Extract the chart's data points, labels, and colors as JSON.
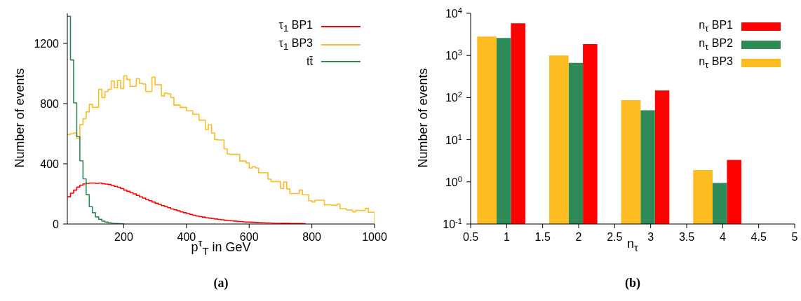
{
  "chart_data": [
    {
      "type": "step",
      "xlabel": "p$^{τ}$$_{T}$ in GeV",
      "ylabel": "Number of events",
      "annotations": [
        "(a)"
      ],
      "xlim": [
        20,
        1000
      ],
      "xticks": [
        200,
        400,
        600,
        800,
        1000
      ],
      "ylim": [
        0,
        1400
      ],
      "yticks": [
        0,
        400,
        800,
        1200
      ],
      "legend": "top right",
      "series": [
        {
          "name": "τ$_{1}$ BP1",
          "color": "#ff0000",
          "x": [
            20,
            30,
            40,
            50,
            60,
            70,
            80,
            90,
            100,
            110,
            120,
            130,
            140,
            150,
            160,
            170,
            180,
            190,
            200,
            210,
            220,
            230,
            240,
            250,
            260,
            270,
            280,
            290,
            300,
            310,
            320,
            330,
            340,
            350,
            360,
            370,
            380,
            390,
            400,
            410,
            420,
            430,
            440,
            450,
            460,
            470,
            480,
            490,
            500,
            510,
            520,
            530,
            540,
            550,
            560,
            570,
            580,
            590,
            600,
            610,
            620,
            630,
            640,
            650,
            660,
            670,
            680,
            690,
            700,
            710,
            720,
            730,
            740,
            750,
            760,
            770,
            780
          ],
          "values": [
            181,
            205,
            225,
            245,
            258,
            266,
            270,
            272,
            272,
            270,
            272,
            268,
            265,
            262,
            256,
            250,
            244,
            235,
            225,
            217,
            208,
            200,
            190,
            180,
            172,
            163,
            155,
            146,
            138,
            130,
            122,
            115,
            108,
            100,
            94,
            88,
            80,
            75,
            70,
            64,
            58,
            53,
            49,
            46,
            42,
            39,
            36,
            33,
            30,
            28,
            25,
            23,
            21,
            19,
            17,
            16,
            14,
            13,
            12,
            11,
            10,
            9,
            8,
            7,
            7,
            6,
            5,
            5,
            4,
            4,
            4,
            3,
            3,
            3,
            3,
            2,
            2
          ]
        },
        {
          "name": "τ$_{1}$ BP3",
          "color": "#fcbc22",
          "x": [
            20,
            30,
            40,
            50,
            60,
            70,
            80,
            90,
            100,
            110,
            120,
            130,
            140,
            150,
            160,
            170,
            180,
            190,
            200,
            210,
            220,
            230,
            240,
            250,
            260,
            270,
            280,
            290,
            300,
            310,
            320,
            330,
            340,
            350,
            360,
            370,
            380,
            390,
            400,
            410,
            420,
            430,
            440,
            450,
            460,
            470,
            480,
            490,
            500,
            510,
            520,
            530,
            540,
            550,
            560,
            570,
            580,
            590,
            600,
            610,
            620,
            630,
            640,
            650,
            660,
            670,
            680,
            690,
            700,
            710,
            720,
            730,
            740,
            750,
            760,
            770,
            780,
            790,
            800,
            810,
            820,
            830,
            840,
            850,
            860,
            870,
            880,
            890,
            900,
            910,
            920,
            930,
            940,
            950,
            960,
            970,
            980,
            990,
            1000
          ],
          "values": [
            595,
            600,
            605,
            570,
            660,
            700,
            745,
            795,
            775,
            775,
            895,
            840,
            880,
            895,
            950,
            905,
            955,
            900,
            985,
            960,
            915,
            915,
            965,
            935,
            930,
            880,
            880,
            975,
            925,
            925,
            850,
            870,
            865,
            840,
            790,
            790,
            775,
            775,
            752,
            752,
            729,
            729,
            690,
            690,
            628,
            659,
            605,
            561,
            558,
            558,
            500,
            465,
            462,
            462,
            462,
            419,
            419,
            406,
            372,
            380,
            372,
            341,
            341,
            341,
            298,
            282,
            282,
            282,
            236,
            279,
            233,
            202,
            202,
            202,
            225,
            194,
            194,
            155,
            147,
            158,
            158,
            158,
            127,
            127,
            127,
            124,
            132,
            101,
            101,
            93,
            93,
            81,
            90,
            90,
            90,
            104,
            78,
            78,
            0
          ]
        },
        {
          "name": "tt̄",
          "color": "#2e8b57",
          "x": [
            20,
            30,
            40,
            50,
            60,
            70,
            80,
            90,
            100,
            110,
            120,
            130,
            140,
            150,
            160,
            170,
            180,
            190,
            200
          ],
          "values": [
            1380,
            1090,
            805,
            580,
            420,
            300,
            195,
            115,
            75,
            47,
            31,
            19,
            12,
            8,
            5,
            3,
            2,
            1,
            0
          ]
        }
      ]
    },
    {
      "type": "bar",
      "log": true,
      "xlabel": "n$_{τ}$",
      "ylabel": "Number of events",
      "annotations": [
        "(b)"
      ],
      "xlim": [
        0.5,
        5
      ],
      "xticks": [
        0.5,
        1,
        1.5,
        2,
        2.5,
        3,
        3.5,
        4,
        4.5,
        5
      ],
      "ylim": [
        0.1,
        10000
      ],
      "yticks": [
        {
          "value": 0.1,
          "label": "10$^{-1}$"
        },
        {
          "value": 1,
          "label": "10$^{0}$"
        },
        {
          "value": 10,
          "label": "10$^{1}$"
        },
        {
          "value": 100,
          "label": "10$^{2}$"
        },
        {
          "value": 1000,
          "label": "10$^{3}$"
        },
        {
          "value": 10000,
          "label": "10$^{4}$"
        }
      ],
      "legend": "top right",
      "series": [
        {
          "name": "n$_{τ}$ BP1",
          "color": "#ff0000",
          "x": [
            1.16,
            2.16,
            3.16,
            4.16
          ],
          "values": [
            5800,
            1850,
            147,
            3.3
          ]
        },
        {
          "name": "n$_{τ}$ BP2",
          "color": "#2e8b57",
          "x": [
            0.96,
            1.96,
            2.96,
            3.96
          ],
          "values": [
            2600,
            670,
            50,
            0.95
          ]
        },
        {
          "name": "n$_{τ}$ BP3",
          "color": "#fcbc22",
          "x": [
            0.73,
            1.73,
            2.73,
            3.73
          ],
          "values": [
            2800,
            1000,
            87,
            1.9
          ]
        }
      ]
    }
  ]
}
